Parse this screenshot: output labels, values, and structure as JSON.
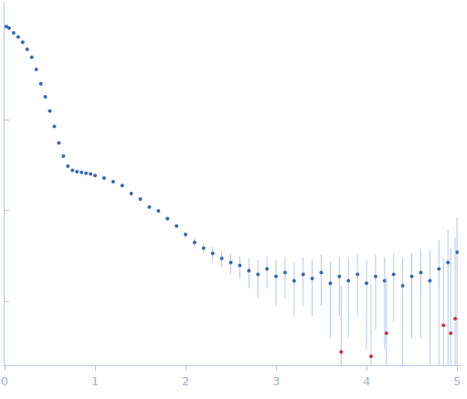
{
  "chart_data": {
    "type": "scatter",
    "log": "y",
    "tick_labels": "x",
    "xlim": [
      0,
      5.05
    ],
    "ylim": [
      0.002,
      20
    ],
    "xticks": [
      0,
      1,
      2,
      3,
      4,
      5
    ],
    "yticks": [
      0.01,
      0.1,
      1
    ],
    "series": [
      {
        "color": "#3a66b7",
        "marker": "circle",
        "x": [
          0.02,
          0.05,
          0.1,
          0.15,
          0.2,
          0.25,
          0.3,
          0.35,
          0.4,
          0.45,
          0.5,
          0.55,
          0.6,
          0.65,
          0.7,
          0.75,
          0.8,
          0.85,
          0.9,
          0.95,
          1.0,
          1.1,
          1.2,
          1.3,
          1.4,
          1.5,
          1.6,
          1.7,
          1.8,
          1.9,
          2.0,
          2.1,
          2.2,
          2.3,
          2.4,
          2.5,
          2.6,
          2.7,
          2.8,
          2.9,
          3.0,
          3.1,
          3.2,
          3.3,
          3.4,
          3.5,
          3.6,
          3.7,
          3.8,
          3.9,
          4.0,
          4.1,
          4.2,
          4.3,
          4.4,
          4.5,
          4.6,
          4.7,
          4.8,
          4.9,
          5.0
        ],
        "values": [
          10.7,
          10.3,
          9.1,
          8.2,
          7.2,
          6.0,
          4.9,
          3.6,
          2.5,
          1.8,
          1.26,
          0.85,
          0.56,
          0.4,
          0.31,
          0.28,
          0.27,
          0.265,
          0.26,
          0.255,
          0.245,
          0.23,
          0.21,
          0.19,
          0.155,
          0.135,
          0.11,
          0.1,
          0.082,
          0.068,
          0.055,
          0.045,
          0.039,
          0.034,
          0.03,
          0.027,
          0.025,
          0.022,
          0.02,
          0.023,
          0.019,
          0.021,
          0.017,
          0.02,
          0.018,
          0.021,
          0.016,
          0.019,
          0.017,
          0.02,
          0.016,
          0.019,
          0.017,
          0.02,
          0.015,
          0.019,
          0.021,
          0.017,
          0.023,
          0.027,
          0.035
        ],
        "error": [
          0.2,
          0.15,
          0.1,
          0.08,
          0.07,
          0.06,
          0.05,
          0.04,
          0.03,
          0.02,
          0.015,
          0.01,
          0.008,
          0.006,
          0.005,
          0.005,
          0.005,
          0.005,
          0.005,
          0.005,
          0.005,
          0.005,
          0.005,
          0.005,
          0.005,
          0.005,
          0.004,
          0.004,
          0.004,
          0.004,
          0.004,
          0.005,
          0.005,
          0.006,
          0.006,
          0.007,
          0.007,
          0.008,
          0.009,
          0.009,
          0.01,
          0.01,
          0.01,
          0.011,
          0.011,
          0.012,
          0.012,
          0.012,
          0.013,
          0.013,
          0.013,
          0.014,
          0.014,
          0.014,
          0.015,
          0.015,
          0.017,
          0.02,
          0.025,
          0.035,
          0.05
        ]
      },
      {
        "color": "#d62a3a",
        "marker": "circle",
        "x": [
          3.72,
          4.05,
          4.22,
          4.85,
          4.93,
          4.98
        ],
        "values": [
          0.0028,
          0.0025,
          0.0045,
          0.0055,
          0.0045,
          0.0065
        ],
        "error": [
          0.012,
          0.013,
          0.014,
          0.025,
          0.035,
          0.045
        ]
      }
    ]
  }
}
